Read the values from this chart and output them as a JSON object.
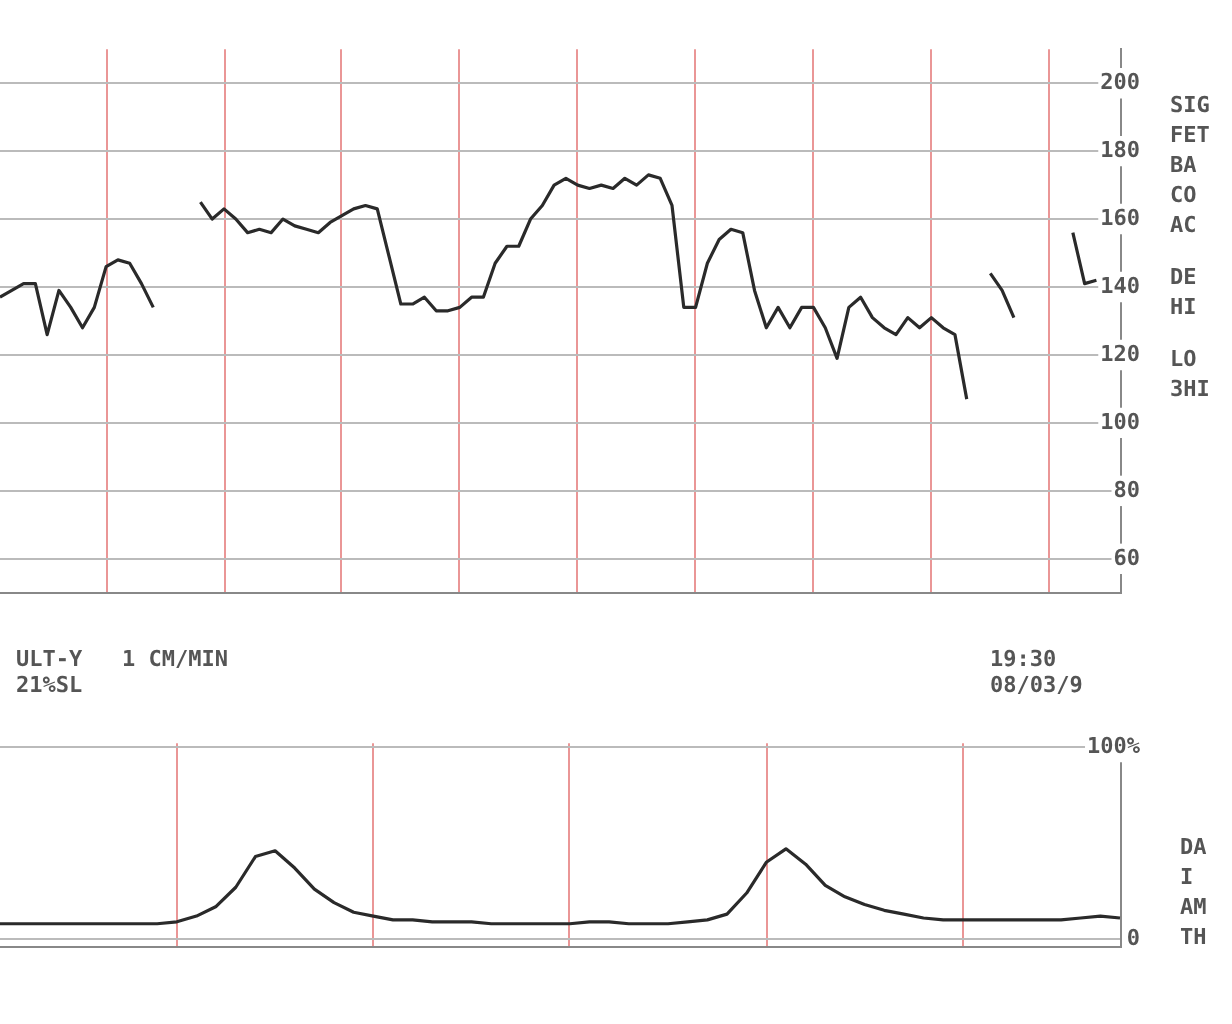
{
  "chart_data": [
    {
      "type": "line",
      "categories": [
        null,
        null,
        null,
        null,
        null,
        null,
        null,
        null,
        null,
        null,
        null,
        null,
        null,
        null,
        null,
        null,
        null,
        null,
        null,
        null,
        null,
        null,
        null,
        null,
        null,
        null,
        null,
        null,
        null,
        null,
        null,
        null,
        null,
        null,
        null,
        null,
        null,
        null,
        null,
        null,
        null,
        null,
        null,
        null,
        null,
        null,
        null,
        null,
        null,
        null,
        null,
        null,
        null,
        null,
        null,
        null,
        null,
        null,
        null,
        null,
        null,
        null,
        null,
        null,
        null,
        null,
        null,
        null,
        null,
        null,
        null,
        null,
        null,
        null,
        null,
        null,
        null,
        null,
        null,
        null,
        null,
        null,
        null,
        null,
        null,
        null,
        null,
        null,
        null,
        null,
        null,
        null,
        null,
        null,
        null,
        null
      ],
      "series": [
        {
          "color": "#2a2a2a",
          "values": [
            137,
            139,
            141,
            141,
            126,
            139,
            134,
            128,
            134,
            146,
            148,
            147,
            141,
            134,
            null,
            null,
            null,
            null,
            null,
            null,
            null,
            null,
            null,
            null,
            null,
            null,
            null,
            null,
            null,
            null,
            null,
            null,
            null,
            null,
            null,
            null,
            null,
            null,
            null,
            null,
            null,
            null,
            null,
            null,
            null,
            null,
            null,
            null,
            null,
            null,
            null,
            null,
            null,
            null,
            null,
            null,
            null,
            null,
            null,
            null,
            null,
            null,
            null,
            null,
            null,
            null,
            null,
            null,
            null,
            null,
            null,
            null,
            null,
            null,
            null,
            null,
            null,
            null,
            null,
            null,
            null,
            null,
            null,
            null,
            null,
            null,
            null,
            null,
            null,
            null,
            null,
            null,
            null,
            null,
            null,
            null
          ]
        },
        {
          "color": "#2a2a2a",
          "values": [
            null,
            null,
            null,
            null,
            null,
            null,
            null,
            null,
            null,
            null,
            null,
            null,
            null,
            null,
            null,
            null,
            null,
            165,
            160,
            163,
            160,
            156,
            157,
            156,
            160,
            158,
            157,
            156,
            159,
            161,
            163,
            164,
            163,
            149,
            135,
            135,
            137,
            133,
            133,
            134,
            137,
            137,
            147,
            152,
            152,
            160,
            164,
            170,
            172,
            170,
            169,
            170,
            169,
            172,
            170,
            173,
            172,
            164,
            134,
            134,
            147,
            154,
            157,
            156,
            139,
            128,
            134,
            128,
            134,
            134,
            128,
            119,
            134,
            137,
            131,
            128,
            126,
            131,
            128,
            131,
            128,
            126,
            107,
            null,
            null,
            null,
            null,
            null,
            null,
            null,
            null,
            null,
            null,
            null,
            null,
            null
          ]
        },
        {
          "color": "#2a2a2a",
          "values": [
            null,
            null,
            null,
            null,
            null,
            null,
            null,
            null,
            null,
            null,
            null,
            null,
            null,
            null,
            null,
            null,
            null,
            null,
            null,
            null,
            null,
            null,
            null,
            null,
            null,
            null,
            null,
            null,
            null,
            null,
            null,
            null,
            null,
            null,
            null,
            null,
            null,
            null,
            null,
            null,
            null,
            null,
            null,
            null,
            null,
            null,
            null,
            null,
            null,
            null,
            null,
            null,
            null,
            null,
            null,
            null,
            null,
            null,
            null,
            null,
            null,
            null,
            null,
            null,
            null,
            null,
            null,
            null,
            null,
            null,
            null,
            null,
            null,
            null,
            null,
            null,
            null,
            null,
            null,
            null,
            null,
            null,
            null,
            null,
            144,
            139,
            131,
            null,
            null,
            null,
            null,
            null,
            null,
            null,
            null,
            null
          ]
        },
        {
          "color": "#2a2a2a",
          "values": [
            null,
            null,
            null,
            null,
            null,
            null,
            null,
            null,
            null,
            null,
            null,
            null,
            null,
            null,
            null,
            null,
            null,
            null,
            null,
            null,
            null,
            null,
            null,
            null,
            null,
            null,
            null,
            null,
            null,
            null,
            null,
            null,
            null,
            null,
            null,
            null,
            null,
            null,
            null,
            null,
            null,
            null,
            null,
            null,
            null,
            null,
            null,
            null,
            null,
            null,
            null,
            null,
            null,
            null,
            null,
            null,
            null,
            null,
            null,
            null,
            null,
            null,
            null,
            null,
            null,
            null,
            null,
            null,
            null,
            null,
            null,
            null,
            null,
            null,
            null,
            null,
            null,
            null,
            null,
            null,
            null,
            null,
            null,
            null,
            null,
            null,
            null,
            null,
            null,
            null,
            null,
            156,
            141,
            142,
            null,
            null
          ]
        }
      ],
      "ylim": [
        50,
        210
      ],
      "yticks": [
        60,
        80,
        100,
        120,
        140,
        160,
        180,
        200
      ],
      "grid": true,
      "tick_labels": "y",
      "marker": "none",
      "line_style": "solid",
      "annotations": [
        "SIG",
        "FET",
        "BA",
        "CO",
        "AC",
        "DE",
        "HI",
        "LO",
        "3HI"
      ]
    },
    {
      "type": "line",
      "categories": [
        null,
        null,
        null,
        null,
        null,
        null,
        null,
        null,
        null,
        null,
        null,
        null,
        null,
        null,
        null,
        null,
        null,
        null,
        null,
        null,
        null,
        null,
        null,
        null,
        null,
        null,
        null,
        null,
        null,
        null,
        null,
        null,
        null,
        null,
        null,
        null,
        null,
        null,
        null,
        null,
        null,
        null,
        null,
        null,
        null,
        null,
        null,
        null,
        null,
        null,
        null,
        null,
        null,
        null,
        null,
        null,
        null,
        null
      ],
      "series": [
        {
          "color": "#2a2a2a",
          "values": [
            8,
            8,
            8,
            8,
            8,
            8,
            8,
            8,
            8,
            9,
            12,
            17,
            27,
            43,
            46,
            37,
            26,
            19,
            14,
            12,
            10,
            10,
            9,
            9,
            9,
            8,
            8,
            8,
            8,
            8,
            9,
            9,
            8,
            8,
            8,
            9,
            10,
            13,
            24,
            40,
            47,
            39,
            28,
            22,
            18,
            15,
            13,
            11,
            10,
            10,
            10,
            10,
            10,
            10,
            10,
            11,
            12,
            11
          ]
        }
      ],
      "ylim": [
        -4,
        102
      ],
      "yticks": [
        0,
        {
          "value": 100,
          "label": "100%"
        }
      ],
      "grid": true,
      "tick_labels": "y",
      "marker": "none",
      "line_style": "solid",
      "annotations": [
        "ULT-Y   1 CM/MIN",
        "21%SL",
        "19:30",
        "08/03/9",
        "DA",
        "I",
        "AM",
        "TH"
      ]
    }
  ]
}
